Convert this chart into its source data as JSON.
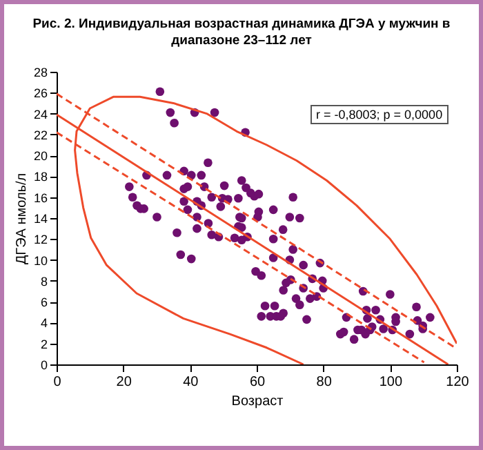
{
  "chart_data": {
    "type": "scatter",
    "title": "Рис. 2. Индивидуальная возрастная динамика ДГЭА у мужчин в диапазоне 23–112 лет",
    "xlabel": "Возраст",
    "ylabel": "ДГЭА нмоль/л",
    "annotations": [
      "r = -0,8003; p = 0,0000"
    ],
    "xlim": [
      0,
      120
    ],
    "ylim": [
      0,
      28
    ],
    "xticks": [
      0,
      20,
      40,
      60,
      80,
      100,
      120
    ],
    "yticks": [
      0,
      2,
      4,
      6,
      8,
      10,
      12,
      14,
      16,
      18,
      20,
      22,
      24,
      26,
      28
    ],
    "grid": false,
    "marker": "circle",
    "series": [
      {
        "color": "#6e0f6e",
        "x": [
          31.0,
          34.1,
          35.3,
          41.4,
          47.4,
          56.6,
          21.8,
          22.8,
          24.1,
          25.2,
          26.2,
          27.0,
          30.1,
          33.1,
          36.1,
          37.2,
          40.4,
          38.2,
          40.4,
          43.4,
          45.4,
          38.2,
          39.3,
          38.2,
          39.3,
          42.1,
          42.1,
          44.3,
          42.1,
          43.4,
          45.5,
          46.5,
          46.5,
          48.6,
          49.2,
          50.3,
          49.7,
          51.4,
          53.4,
          54.5,
          54.9,
          55.5,
          54.5,
          55.5,
          55.5,
          57.2,
          55.5,
          56.8,
          58.2,
          59.3,
          60.6,
          60.6,
          60.3,
          59.7,
          61.4,
          61.4,
          62.5,
          65.0,
          70.9,
          69.9,
          72.9,
          67.9,
          65.0,
          70.9,
          65.0,
          69.9,
          74.0,
          79.0,
          76.7,
          70.2,
          68.8,
          68.0,
          74.0,
          71.8,
          72.9,
          76.0,
          78.0,
          80.0,
          79.7,
          65.4,
          64.1,
          65.9,
          67.2,
          68.0,
          75.0,
          86.9,
          85.1,
          86.1,
          89.2,
          90.3,
          91.4,
          91.9,
          92.9,
          93.2,
          92.6,
          94.0,
          94.6,
          95.7,
          97.0,
          98.0,
          100.0,
          100.7,
          101.7,
          101.7,
          105.9,
          107.9,
          108.2,
          109.8,
          109.8,
          112.0
        ],
        "values": [
          26.1,
          24.1,
          23.1,
          24.1,
          24.1,
          22.2,
          17.0,
          16.0,
          15.2,
          14.9,
          14.9,
          18.1,
          14.1,
          18.1,
          12.6,
          10.5,
          10.1,
          18.5,
          18.1,
          18.1,
          19.3,
          16.8,
          17.0,
          15.6,
          14.8,
          14.1,
          13.0,
          17.0,
          15.6,
          15.2,
          13.5,
          16.0,
          12.4,
          12.2,
          15.1,
          17.1,
          15.9,
          15.8,
          12.1,
          15.9,
          14.1,
          14.0,
          13.2,
          13.1,
          11.9,
          12.2,
          17.6,
          16.9,
          16.4,
          16.1,
          16.3,
          14.6,
          14.1,
          8.9,
          8.5,
          4.6,
          5.6,
          14.8,
          16.0,
          14.1,
          14.0,
          12.9,
          12.0,
          11.0,
          10.2,
          10.0,
          9.5,
          9.7,
          8.2,
          8.1,
          7.8,
          7.1,
          7.3,
          6.3,
          5.7,
          6.3,
          6.5,
          7.3,
          8.0,
          5.6,
          4.6,
          4.6,
          4.6,
          4.9,
          4.3,
          4.5,
          2.9,
          3.1,
          2.4,
          3.3,
          3.3,
          7.0,
          5.2,
          4.4,
          2.9,
          3.3,
          3.6,
          5.2,
          4.3,
          3.4,
          6.7,
          3.3,
          4.5,
          4.1,
          2.9,
          5.5,
          4.2,
          3.7,
          3.4,
          4.5
        ]
      },
      {
        "type": "line",
        "marker": "none",
        "color": "#ee4a2a",
        "line_style": "solid",
        "x": [
          0,
          117.4
        ],
        "values": [
          23.9,
          0
        ]
      },
      {
        "type": "line",
        "marker": "none",
        "color": "#ee4a2a",
        "line_style": "dashed",
        "x": [
          0,
          120
        ],
        "values": [
          25.9,
          1.5
        ]
      },
      {
        "type": "line",
        "marker": "none",
        "color": "#ee4a2a",
        "line_style": "dashed",
        "x": [
          0,
          110.2
        ],
        "values": [
          22.2,
          0.2
        ]
      },
      {
        "type": "line",
        "marker": "none",
        "color": "#ee4a2a",
        "line_style": "solid",
        "x": [
          74,
          63,
          52,
          38,
          24,
          15,
          10.3,
          8,
          6.2,
          5.5,
          6,
          10,
          17,
          25,
          35,
          45,
          54,
          63,
          72,
          81,
          90,
          100,
          108,
          114,
          120
        ],
        "values": [
          0,
          1.6,
          2.9,
          4.4,
          6.8,
          9.5,
          12.1,
          15,
          18.3,
          20.5,
          22.3,
          24.5,
          25.6,
          25.6,
          25,
          24,
          22.3,
          21.0,
          19.5,
          17.6,
          15.2,
          12.0,
          8.6,
          5.6,
          2.0
        ]
      }
    ]
  }
}
